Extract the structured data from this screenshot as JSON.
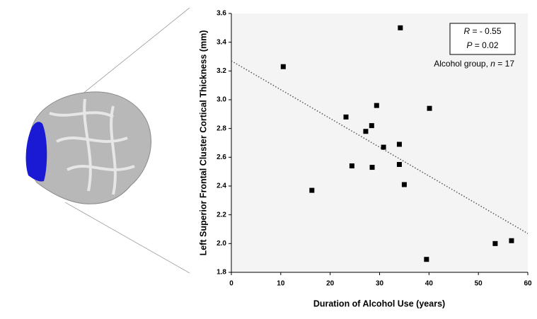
{
  "chart_data": {
    "type": "scatter",
    "xlabel": "Duration of Alcohol Use (years)",
    "ylabel": "Left Superior Frontal Cluster Cortical Thickness (mm)",
    "x": [
      10.5,
      34.2,
      23.2,
      29.4,
      40.1,
      27.2,
      28.4,
      34.0,
      30.8,
      24.4,
      28.5,
      34.0,
      35.0,
      16.3,
      39.5,
      53.4,
      56.7
    ],
    "values": [
      3.23,
      3.5,
      2.88,
      2.96,
      2.94,
      2.78,
      2.82,
      2.69,
      2.67,
      2.54,
      2.53,
      2.55,
      2.41,
      2.37,
      1.89,
      2.0,
      2.02
    ],
    "color": "#000000",
    "trendline": {
      "x": [
        0,
        60
      ],
      "y": [
        3.27,
        2.07
      ]
    },
    "xlim": [
      0,
      60
    ],
    "xticks": [
      0,
      10,
      20,
      30,
      40,
      50,
      60
    ],
    "ylim": [
      1.8,
      3.6
    ],
    "yticks": [
      1.8,
      {
        "value": 2,
        "label": "2.0"
      },
      2.2,
      2.4,
      2.6,
      2.8,
      {
        "value": 3,
        "label": "3.0"
      },
      3.2,
      3.4,
      3.6
    ],
    "annotations": [
      {
        "italic": "R",
        "text": " = - 0.55"
      },
      {
        "italic": "P",
        "text": " = 0.02"
      },
      {
        "text": "Alcohol group, ",
        "italic": "n",
        "after": " = 17"
      }
    ]
  }
}
